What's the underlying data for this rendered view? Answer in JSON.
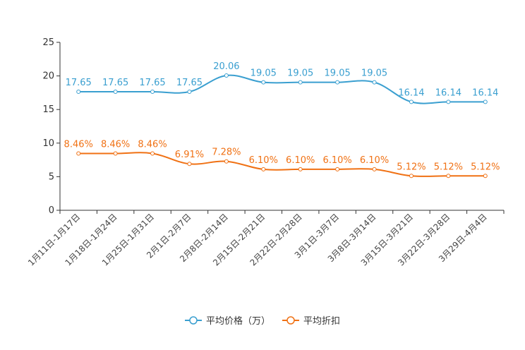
{
  "chart_data": {
    "type": "line",
    "categories": [
      "1月11日-1月17日",
      "1月18日-1月24日",
      "1月25日-1月31日",
      "2月1日-2月7日",
      "2月8日-2月14日",
      "2月15日-2月21日",
      "2月22日-2月28日",
      "3月1日-3月7日",
      "3月8日-3月14日",
      "3月15日-3月21日",
      "3月22日-3月28日",
      "3月29日-4月4日"
    ],
    "ylim": [
      0,
      25
    ],
    "yticks": [
      0,
      5,
      10,
      15,
      20,
      25
    ],
    "series": [
      {
        "name": "平均价格（万）",
        "color": "#3a9fd0",
        "values": [
          17.65,
          17.65,
          17.65,
          17.65,
          20.06,
          19.05,
          19.05,
          19.05,
          19.05,
          16.14,
          16.14,
          16.14
        ],
        "labels": [
          "17.65",
          "17.65",
          "17.65",
          "17.65",
          "20.06",
          "19.05",
          "19.05",
          "19.05",
          "19.05",
          "16.14",
          "16.14",
          "16.14"
        ]
      },
      {
        "name": "平均折扣",
        "color": "#f07114",
        "values": [
          8.46,
          8.46,
          8.46,
          6.91,
          7.28,
          6.1,
          6.1,
          6.1,
          6.1,
          5.12,
          5.12,
          5.12
        ],
        "labels": [
          "8.46%",
          "8.46%",
          "8.46%",
          "6.91%",
          "7.28%",
          "6.10%",
          "6.10%",
          "6.10%",
          "6.10%",
          "5.12%",
          "5.12%",
          "5.12%"
        ]
      }
    ],
    "legend_position": "bottom-center"
  }
}
